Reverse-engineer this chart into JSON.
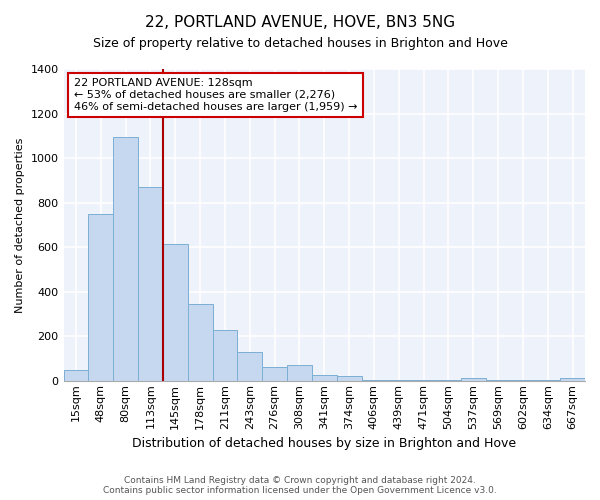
{
  "title": "22, PORTLAND AVENUE, HOVE, BN3 5NG",
  "subtitle": "Size of property relative to detached houses in Brighton and Hove",
  "xlabel": "Distribution of detached houses by size in Brighton and Hove",
  "ylabel": "Number of detached properties",
  "bar_labels": [
    "15sqm",
    "48sqm",
    "80sqm",
    "113sqm",
    "145sqm",
    "178sqm",
    "211sqm",
    "243sqm",
    "276sqm",
    "308sqm",
    "341sqm",
    "374sqm",
    "406sqm",
    "439sqm",
    "471sqm",
    "504sqm",
    "537sqm",
    "569sqm",
    "602sqm",
    "634sqm",
    "667sqm"
  ],
  "bar_values": [
    50,
    750,
    1095,
    870,
    615,
    345,
    228,
    130,
    63,
    70,
    25,
    20,
    5,
    3,
    2,
    2,
    12,
    2,
    2,
    2,
    12
  ],
  "bar_color": "#c5d8f0",
  "bar_edge_color": "#7bafd4",
  "vline_index": 3,
  "vline_color": "#aa0000",
  "annotation_title": "22 PORTLAND AVENUE: 128sqm",
  "annotation_line1": "← 53% of detached houses are smaller (2,276)",
  "annotation_line2": "46% of semi-detached houses are larger (1,959) →",
  "annotation_box_facecolor": "#ffffff",
  "annotation_box_edgecolor": "#cc0000",
  "ylim": [
    0,
    1400
  ],
  "yticks": [
    0,
    200,
    400,
    600,
    800,
    1000,
    1200,
    1400
  ],
  "footer1": "Contains HM Land Registry data © Crown copyright and database right 2024.",
  "footer2": "Contains public sector information licensed under the Open Government Licence v3.0.",
  "fig_facecolor": "#ffffff",
  "plot_facecolor": "#eef2fa",
  "grid_color": "#ffffff",
  "title_fontsize": 11,
  "subtitle_fontsize": 9,
  "ylabel_fontsize": 8,
  "xlabel_fontsize": 9,
  "tick_fontsize": 8,
  "annotation_fontsize": 8,
  "footer_fontsize": 6.5
}
